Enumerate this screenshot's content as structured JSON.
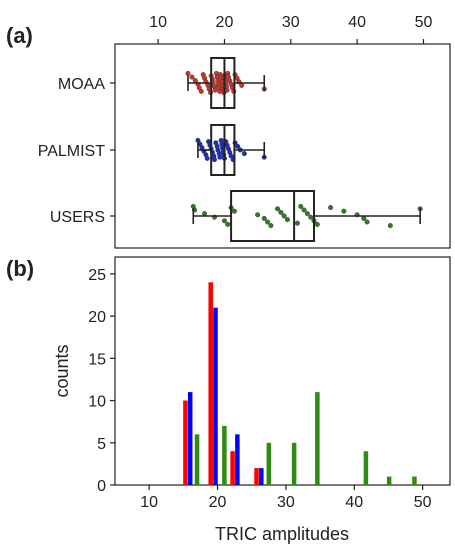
{
  "panel_a": {
    "label": "(a)",
    "chart_data": {
      "type": "box",
      "categories": [
        "MOAA",
        "PALMIST",
        "USERS"
      ],
      "xlim": [
        3.5,
        54
      ],
      "xticks": [
        10,
        20,
        30,
        40,
        50
      ],
      "x_tick_labels": [
        "10",
        "20",
        "30",
        "40",
        "50"
      ],
      "boxes": [
        {
          "category": "MOAA",
          "whisker_low": 14.5,
          "q1": 18,
          "median": 20,
          "q3": 21.5,
          "whisker_high": 26
        },
        {
          "category": "PALMIST",
          "whisker_low": 16,
          "q1": 18,
          "median": 20,
          "q3": 21.5,
          "whisker_high": 26
        },
        {
          "category": "USERS",
          "whisker_low": 15.3,
          "q1": 21,
          "median": 30.5,
          "q3": 33.5,
          "whisker_high": 49.5
        }
      ],
      "points": {
        "MOAA": [
          14.5,
          15.1,
          15.6,
          16,
          16.2,
          16.5,
          16.8,
          17,
          17.2,
          17.5,
          17.7,
          17.9,
          18,
          18.2,
          18.3,
          18.5,
          18.6,
          18.8,
          18.9,
          19,
          19.1,
          19.2,
          19.3,
          19.4,
          19.5,
          19.6,
          19.7,
          19.8,
          19.9,
          20,
          20.1,
          20.2,
          20.3,
          20.4,
          20.5,
          20.6,
          20.8,
          21,
          21.2,
          21.4,
          21.6,
          21.9,
          22.2,
          22.6,
          26
        ],
        "PALMIST": [
          16,
          16.3,
          16.6,
          16.9,
          17.2,
          17.4,
          17.6,
          17.8,
          18,
          18.2,
          18.4,
          18.5,
          18.7,
          18.9,
          19,
          19.2,
          19.3,
          19.5,
          19.6,
          19.7,
          19.8,
          19.9,
          20,
          20.2,
          20.4,
          20.6,
          20.8,
          21,
          21.3,
          21.6,
          22,
          22.4,
          23,
          26
        ],
        "USERS": [
          15.3,
          15.5,
          17,
          18.5,
          20,
          20.5,
          21,
          21.5,
          25,
          26,
          26.5,
          27,
          28,
          28.5,
          29,
          29.5,
          31,
          31.5,
          32,
          32.5,
          33,
          33.5,
          34,
          36,
          38,
          40,
          41,
          41.5,
          45,
          49.5
        ]
      },
      "colors": {
        "MOAA": "#c0392b",
        "PALMIST": "#1f2fb5",
        "USERS": "#2e7d1e"
      }
    }
  },
  "panel_b": {
    "label": "(b)",
    "chart_data": {
      "type": "bar",
      "xlabel": "TRIC amplitudes",
      "ylabel": "counts",
      "xlim": [
        5,
        54
      ],
      "ylim": [
        0,
        27
      ],
      "xticks": [
        10,
        20,
        30,
        40,
        50
      ],
      "x_tick_labels": [
        "10",
        "20",
        "30",
        "40",
        "50"
      ],
      "yticks": [
        0,
        5,
        10,
        15,
        20,
        25
      ],
      "y_tick_labels": [
        "0",
        "5",
        "10",
        "15",
        "20",
        "25"
      ],
      "series": [
        {
          "color": "#ff0000",
          "x": [
            15.3,
            19.0,
            22.2,
            25.7
          ],
          "values": [
            10,
            24,
            4,
            2
          ]
        },
        {
          "color": "#0000ff",
          "x": [
            16.0,
            19.7,
            22.9,
            26.4
          ],
          "values": [
            11,
            21,
            6,
            2
          ]
        },
        {
          "color": "#2e8b14",
          "x": [
            17.0,
            21.0,
            27.5,
            31.2,
            34.6,
            41.7,
            45.1,
            48.8
          ],
          "values": [
            6,
            7,
            5,
            5,
            11,
            4,
            1,
            1
          ]
        }
      ]
    }
  }
}
